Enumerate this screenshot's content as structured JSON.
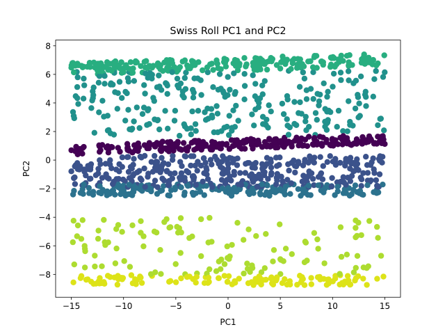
{
  "chart_data": {
    "type": "scatter",
    "title": "Swiss Roll PC1 and PC2",
    "xlabel": "PC1",
    "ylabel": "PC2",
    "xlim": [
      -16.5,
      16.5
    ],
    "ylim": [
      -9.6,
      8.4
    ],
    "xticks": [
      -15,
      -10,
      -5,
      0,
      5,
      10,
      15
    ],
    "xtick_labels": [
      "−15",
      "−10",
      "−5",
      "0",
      "5",
      "10",
      "15"
    ],
    "yticks": [
      -8,
      -6,
      -4,
      -2,
      0,
      2,
      4,
      6,
      8
    ],
    "ytick_labels": [
      "−8",
      "−6",
      "−4",
      "−2",
      "0",
      "2",
      "4",
      "6",
      "8"
    ],
    "grid": false,
    "colormap": "viridis",
    "marker_alpha": 1,
    "point_count": 1500,
    "bands": [
      {
        "y_center": 1.1,
        "y_spread": 0.35,
        "slope": 0.025,
        "count": 260,
        "color_value": 0.02,
        "color": "#440154"
      },
      {
        "y_center": -0.8,
        "y_spread": 1.1,
        "slope": 0.0,
        "count": 340,
        "color_value": 0.22,
        "color": "#3b528b"
      },
      {
        "y_center": -2.1,
        "y_spread": 0.4,
        "slope": 0.0,
        "count": 180,
        "color_value": 0.35,
        "color": "#2c728e"
      },
      {
        "y_center": 4.0,
        "y_spread": 2.3,
        "slope": 0.0,
        "count": 260,
        "color_value": 0.45,
        "color": "#21918c"
      },
      {
        "y_center": 6.7,
        "y_spread": 0.45,
        "slope": 0.02,
        "count": 220,
        "color_value": 0.6,
        "color": "#28ae80"
      },
      {
        "y_center": -6.0,
        "y_spread": 2.0,
        "slope": 0.0,
        "count": 120,
        "color_value": 0.85,
        "color": "#addc30"
      },
      {
        "y_center": -8.4,
        "y_spread": 0.35,
        "slope": 0.0,
        "count": 120,
        "color_value": 0.95,
        "color": "#dde318"
      }
    ]
  }
}
